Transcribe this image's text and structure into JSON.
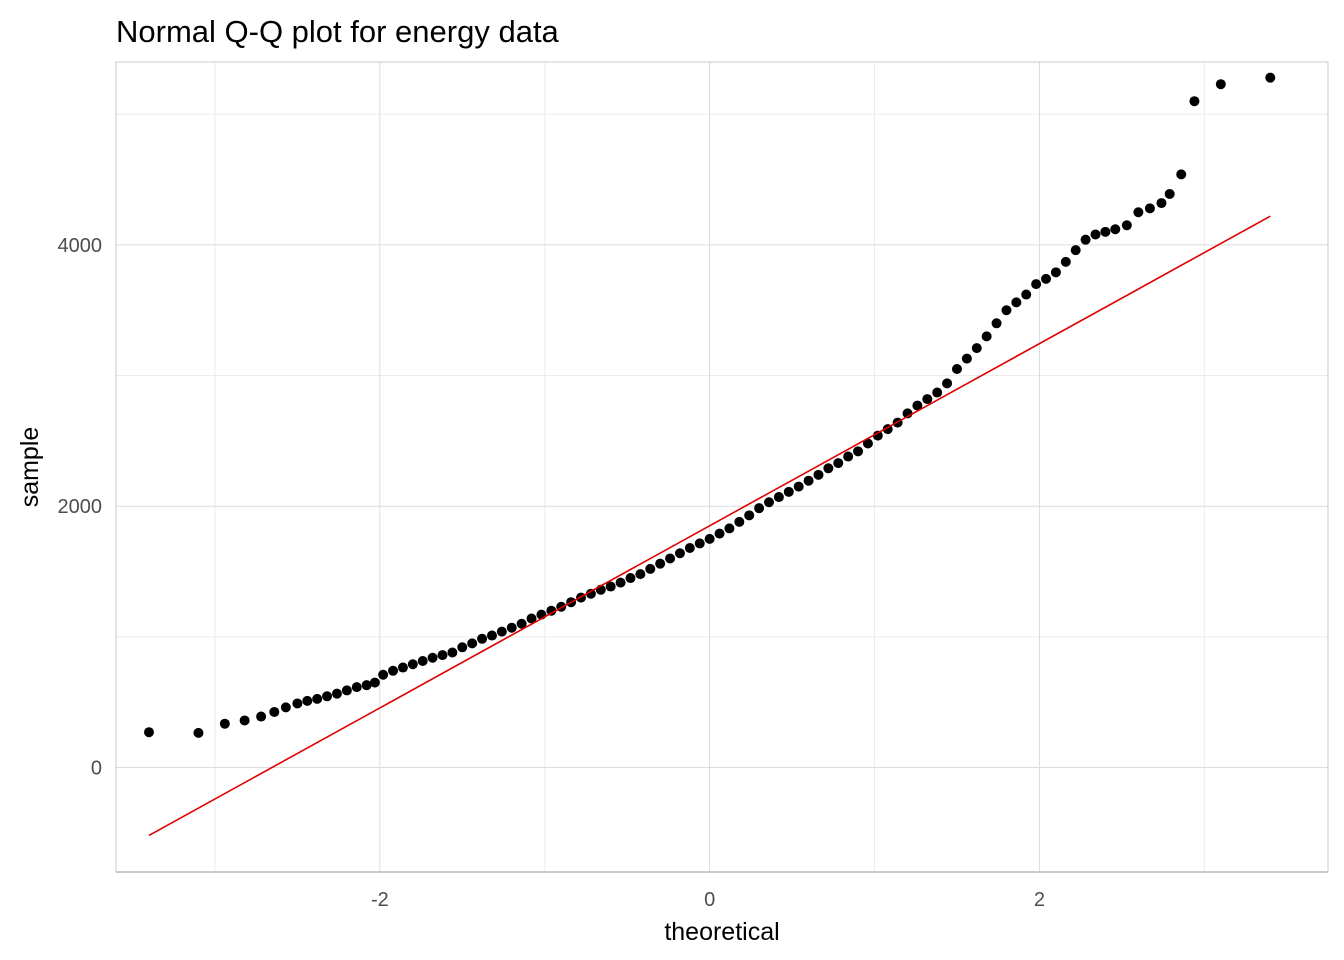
{
  "chart_data": {
    "type": "scatter",
    "title": "Normal Q-Q plot for energy data",
    "xlabel": "theoretical",
    "ylabel": "sample",
    "xlim": [
      -3.6,
      3.75
    ],
    "ylim": [
      -800,
      5400
    ],
    "x_ticks": [
      -2,
      0,
      2
    ],
    "x_tick_labels": [
      "-2",
      "0",
      "2"
    ],
    "y_ticks": [
      0,
      2000,
      4000
    ],
    "y_tick_labels": [
      "0",
      "2000",
      "4000"
    ],
    "grid": true,
    "point_color": "#000000",
    "reference_line": {
      "color": "#e00000",
      "x": [
        -3.4,
        3.4
      ],
      "y": [
        -520,
        4220
      ]
    },
    "series": [
      {
        "values": [
          {
            "x": -3.4,
            "y": 270
          },
          {
            "x": -3.1,
            "y": 265
          },
          {
            "x": -2.94,
            "y": 335
          },
          {
            "x": -2.82,
            "y": 360
          },
          {
            "x": -2.72,
            "y": 390
          },
          {
            "x": -2.64,
            "y": 425
          },
          {
            "x": -2.57,
            "y": 460
          },
          {
            "x": -2.5,
            "y": 490
          },
          {
            "x": -2.44,
            "y": 510
          },
          {
            "x": -2.38,
            "y": 525
          },
          {
            "x": -2.32,
            "y": 545
          },
          {
            "x": -2.26,
            "y": 565
          },
          {
            "x": -2.2,
            "y": 590
          },
          {
            "x": -2.14,
            "y": 615
          },
          {
            "x": -2.08,
            "y": 630
          },
          {
            "x": -2.03,
            "y": 650
          },
          {
            "x": -1.98,
            "y": 710
          },
          {
            "x": -1.92,
            "y": 740
          },
          {
            "x": -1.86,
            "y": 765
          },
          {
            "x": -1.8,
            "y": 790
          },
          {
            "x": -1.74,
            "y": 815
          },
          {
            "x": -1.68,
            "y": 840
          },
          {
            "x": -1.62,
            "y": 860
          },
          {
            "x": -1.56,
            "y": 880
          },
          {
            "x": -1.5,
            "y": 920
          },
          {
            "x": -1.44,
            "y": 950
          },
          {
            "x": -1.38,
            "y": 985
          },
          {
            "x": -1.32,
            "y": 1010
          },
          {
            "x": -1.26,
            "y": 1040
          },
          {
            "x": -1.2,
            "y": 1070
          },
          {
            "x": -1.14,
            "y": 1100
          },
          {
            "x": -1.08,
            "y": 1140
          },
          {
            "x": -1.02,
            "y": 1170
          },
          {
            "x": -0.96,
            "y": 1200
          },
          {
            "x": -0.9,
            "y": 1230
          },
          {
            "x": -0.84,
            "y": 1265
          },
          {
            "x": -0.78,
            "y": 1300
          },
          {
            "x": -0.72,
            "y": 1330
          },
          {
            "x": -0.66,
            "y": 1360
          },
          {
            "x": -0.6,
            "y": 1385
          },
          {
            "x": -0.54,
            "y": 1415
          },
          {
            "x": -0.48,
            "y": 1450
          },
          {
            "x": -0.42,
            "y": 1480
          },
          {
            "x": -0.36,
            "y": 1520
          },
          {
            "x": -0.3,
            "y": 1560
          },
          {
            "x": -0.24,
            "y": 1600
          },
          {
            "x": -0.18,
            "y": 1640
          },
          {
            "x": -0.12,
            "y": 1680
          },
          {
            "x": -0.06,
            "y": 1715
          },
          {
            "x": 0.0,
            "y": 1750
          },
          {
            "x": 0.06,
            "y": 1790
          },
          {
            "x": 0.12,
            "y": 1830
          },
          {
            "x": 0.18,
            "y": 1880
          },
          {
            "x": 0.24,
            "y": 1930
          },
          {
            "x": 0.3,
            "y": 1985
          },
          {
            "x": 0.36,
            "y": 2030
          },
          {
            "x": 0.42,
            "y": 2070
          },
          {
            "x": 0.48,
            "y": 2110
          },
          {
            "x": 0.54,
            "y": 2150
          },
          {
            "x": 0.6,
            "y": 2195
          },
          {
            "x": 0.66,
            "y": 2240
          },
          {
            "x": 0.72,
            "y": 2290
          },
          {
            "x": 0.78,
            "y": 2330
          },
          {
            "x": 0.84,
            "y": 2380
          },
          {
            "x": 0.9,
            "y": 2420
          },
          {
            "x": 0.96,
            "y": 2480
          },
          {
            "x": 1.02,
            "y": 2540
          },
          {
            "x": 1.08,
            "y": 2590
          },
          {
            "x": 1.14,
            "y": 2640
          },
          {
            "x": 1.2,
            "y": 2710
          },
          {
            "x": 1.26,
            "y": 2770
          },
          {
            "x": 1.32,
            "y": 2820
          },
          {
            "x": 1.38,
            "y": 2870
          },
          {
            "x": 1.44,
            "y": 2940
          },
          {
            "x": 1.5,
            "y": 3050
          },
          {
            "x": 1.56,
            "y": 3130
          },
          {
            "x": 1.62,
            "y": 3210
          },
          {
            "x": 1.68,
            "y": 3300
          },
          {
            "x": 1.74,
            "y": 3400
          },
          {
            "x": 1.8,
            "y": 3500
          },
          {
            "x": 1.86,
            "y": 3560
          },
          {
            "x": 1.92,
            "y": 3620
          },
          {
            "x": 1.98,
            "y": 3700
          },
          {
            "x": 2.04,
            "y": 3740
          },
          {
            "x": 2.1,
            "y": 3790
          },
          {
            "x": 2.16,
            "y": 3870
          },
          {
            "x": 2.22,
            "y": 3960
          },
          {
            "x": 2.28,
            "y": 4040
          },
          {
            "x": 2.34,
            "y": 4080
          },
          {
            "x": 2.4,
            "y": 4100
          },
          {
            "x": 2.46,
            "y": 4120
          },
          {
            "x": 2.53,
            "y": 4150
          },
          {
            "x": 2.6,
            "y": 4250
          },
          {
            "x": 2.67,
            "y": 4280
          },
          {
            "x": 2.74,
            "y": 4320
          },
          {
            "x": 2.79,
            "y": 4390
          },
          {
            "x": 2.86,
            "y": 4540
          },
          {
            "x": 2.94,
            "y": 5100
          },
          {
            "x": 3.1,
            "y": 5230
          },
          {
            "x": 3.4,
            "y": 5280
          }
        ]
      }
    ]
  }
}
